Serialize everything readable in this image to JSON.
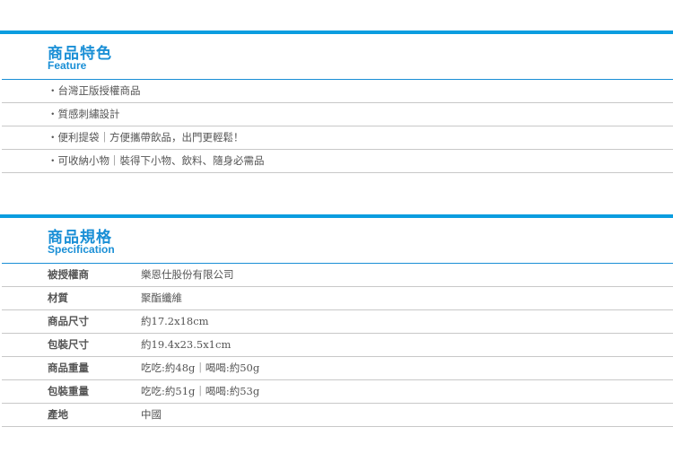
{
  "feature": {
    "title": "商品特色",
    "subtitle": "Feature",
    "items": [
      "・台灣正版授權商品",
      "・質感刺繡設計",
      "・便利提袋｜方便攜帶飲品，出門更輕鬆！",
      "・可收納小物｜裝得下小物、飲料、隨身必需品"
    ]
  },
  "spec": {
    "title": "商品規格",
    "subtitle": "Specification",
    "rows": [
      {
        "label": "被授權商",
        "value": "樂恩仕股份有限公司"
      },
      {
        "label": "材質",
        "value": "聚酯纖維"
      },
      {
        "label": "商品尺寸",
        "value": "約17.2x18cm"
      },
      {
        "label": "包裝尺寸",
        "value": "約19.4x23.5x1cm"
      },
      {
        "label": "商品重量",
        "value": "吃吃:約48g｜喝喝:約50g"
      },
      {
        "label": "包裝重量",
        "value": "吃吃:約51g｜喝喝:約53g"
      },
      {
        "label": "產地",
        "value": "中國"
      }
    ]
  },
  "colors": {
    "accent": "#1a8fd6",
    "divider": "#c8c8c8"
  }
}
